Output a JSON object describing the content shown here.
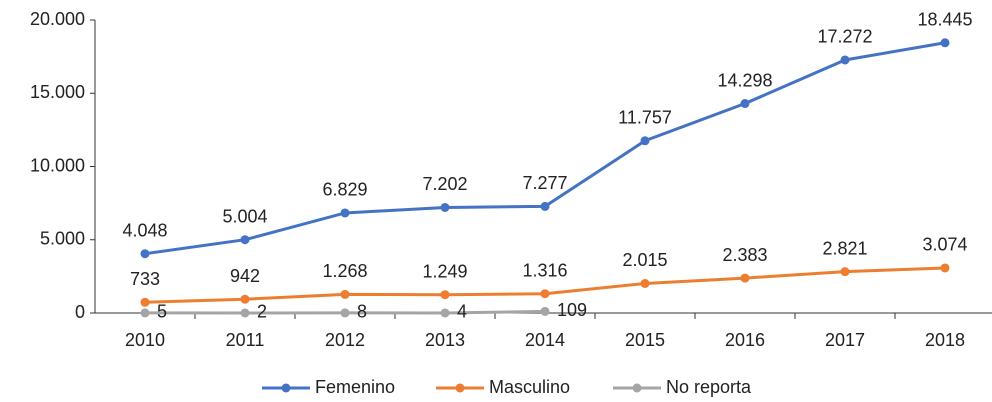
{
  "chart_data": {
    "type": "line",
    "categories": [
      "2010",
      "2011",
      "2012",
      "2013",
      "2014",
      "2015",
      "2016",
      "2017",
      "2018"
    ],
    "series": [
      {
        "name": "Femenino",
        "color": "#4472c4",
        "values": [
          4048,
          5004,
          6829,
          7202,
          7277,
          11757,
          14298,
          17272,
          18445
        ],
        "value_labels": [
          "4.048",
          "5.004",
          "6.829",
          "7.202",
          "7.277",
          "11.757",
          "14.298",
          "17.272",
          "18.445"
        ]
      },
      {
        "name": "Masculino",
        "color": "#ed7d31",
        "values": [
          733,
          942,
          1268,
          1249,
          1316,
          2015,
          2383,
          2821,
          3074
        ],
        "value_labels": [
          "733",
          "942",
          "1.268",
          "1.249",
          "1.316",
          "2.015",
          "2.383",
          "2.821",
          "3.074"
        ]
      },
      {
        "name": "No reporta",
        "color": "#a5a5a5",
        "values": [
          5,
          2,
          8,
          4,
          109,
          null,
          null,
          null,
          null
        ],
        "value_labels": [
          "5",
          "2",
          "8",
          "4",
          "109",
          null,
          null,
          null,
          null
        ]
      }
    ],
    "ylim": [
      0,
      20000
    ],
    "yticks": [
      0,
      {
        "value": 5000,
        "label": "5.000"
      },
      {
        "value": 10000,
        "label": "10.000"
      },
      {
        "value": 15000,
        "label": "15.000"
      },
      {
        "value": 20000,
        "label": "20.000"
      }
    ],
    "grid": false,
    "legend": "bottom"
  }
}
